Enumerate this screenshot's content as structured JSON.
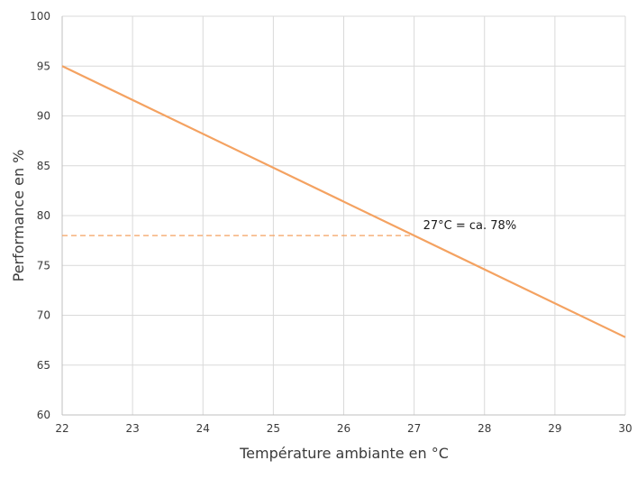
{
  "chart_data": {
    "type": "line",
    "xlabel": "Température ambiante en °C",
    "ylabel": "Performance en %",
    "xlim": [
      22,
      30
    ],
    "ylim": [
      60,
      100
    ],
    "x_ticks": [
      "22",
      "23",
      "24",
      "25",
      "26",
      "27",
      "28",
      "29",
      "30"
    ],
    "y_ticks": [
      "60",
      "65",
      "70",
      "75",
      "80",
      "85",
      "90",
      "95",
      "100"
    ],
    "grid": true,
    "legend": false,
    "series": [
      {
        "color": "#f4a261",
        "x": [
          22,
          30
        ],
        "y": [
          95,
          67.8
        ]
      }
    ],
    "reference_line": {
      "y": 78,
      "x_from": 22,
      "x_to": 27,
      "color": "#f4a261",
      "style": "dashed"
    },
    "annotation": {
      "text": "27°C = ca. 78%",
      "x": 27,
      "y": 78
    }
  }
}
